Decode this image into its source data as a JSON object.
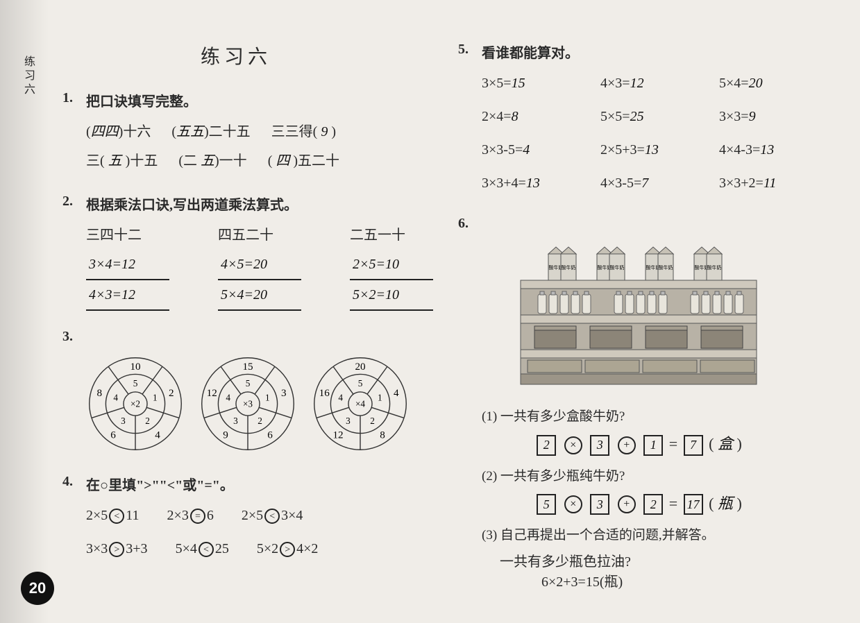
{
  "margin_label": "练习六",
  "title": "练习六",
  "page_number": "20",
  "q1": {
    "num": "1.",
    "prompt": "把口诀填写完整。",
    "row1": [
      {
        "pre": "(",
        "fill": "四四",
        "post": ")十六"
      },
      {
        "pre": "(",
        "fill": "五五",
        "post": ")二十五"
      },
      {
        "pre": "三三得( ",
        "fill": "9",
        "post": " )"
      }
    ],
    "row2": [
      {
        "pre": "三( ",
        "fill": "五",
        "post": " )十五"
      },
      {
        "pre": "(二 ",
        "fill": "五",
        "post": ")一十"
      },
      {
        "pre": "( ",
        "fill": "四",
        "post": " )五二十"
      }
    ]
  },
  "q2": {
    "num": "2.",
    "prompt": "根据乘法口诀,写出两道乘法算式。",
    "cols": [
      {
        "head": "三四十二",
        "a": "3×4=12",
        "b": "4×3=12"
      },
      {
        "head": "四五二十",
        "a": "4×5=20",
        "b": "5×4=20"
      },
      {
        "head": "二五一十",
        "a": "2×5=10",
        "b": "5×2=10"
      }
    ]
  },
  "q3": {
    "num": "3.",
    "wheels": [
      {
        "center": "×2",
        "inner": [
          "5",
          "1",
          "2",
          "3",
          "4"
        ],
        "outer": [
          "10",
          "2",
          "4",
          "6",
          "8"
        ]
      },
      {
        "center": "×3",
        "inner": [
          "5",
          "1",
          "2",
          "3",
          "4"
        ],
        "outer": [
          "15",
          "3",
          "6",
          "9",
          "12"
        ]
      },
      {
        "center": "×4",
        "inner": [
          "5",
          "1",
          "2",
          "3",
          "4"
        ],
        "outer": [
          "20",
          "4",
          "8",
          "12",
          "16"
        ]
      }
    ],
    "colors": {
      "line": "#333",
      "hand": "#111"
    }
  },
  "q4": {
    "num": "4.",
    "prompt": "在○里填\">\"\"<\"或\"=\"。",
    "rows": [
      [
        {
          "l": "2×5",
          "s": "<",
          "r": "11"
        },
        {
          "l": "2×3",
          "s": "=",
          "r": "6"
        },
        {
          "l": "2×5",
          "s": "<",
          "r": "3×4"
        }
      ],
      [
        {
          "l": "3×3",
          "s": ">",
          "r": "3+3"
        },
        {
          "l": "5×4",
          "s": "<",
          "r": "25"
        },
        {
          "l": "5×2",
          "s": ">",
          "r": "4×2"
        }
      ]
    ]
  },
  "q5": {
    "num": "5.",
    "prompt": "看谁都能算对。",
    "items": [
      {
        "expr": "3×5=",
        "ans": "15"
      },
      {
        "expr": "4×3=",
        "ans": "12"
      },
      {
        "expr": "5×4=",
        "ans": "20"
      },
      {
        "expr": "2×4=",
        "ans": "8"
      },
      {
        "expr": "5×5=",
        "ans": "25"
      },
      {
        "expr": "3×3=",
        "ans": "9"
      },
      {
        "expr": "3×3-5=",
        "ans": "4"
      },
      {
        "expr": "2×5+3=",
        "ans": "13"
      },
      {
        "expr": "4×4-3=",
        "ans": "13"
      },
      {
        "expr": "3×3+4=",
        "ans": "13"
      },
      {
        "expr": "4×3-5=",
        "ans": "7"
      },
      {
        "expr": "3×3+2=",
        "ans": "11"
      }
    ]
  },
  "q6": {
    "num": "6.",
    "shelf": {
      "top_cartons_label": "酸牛奶",
      "colors": {
        "shelf": "#b8b2a6",
        "carton": "#d8d5cc",
        "bottle": "#e8e5dc",
        "box": "#8c8578",
        "box_front": "#a59e90"
      }
    },
    "sub1": {
      "label": "(1) 一共有多少盒酸牛奶?",
      "boxes": [
        "2",
        "3",
        "1",
        "7"
      ],
      "ops": [
        "×",
        "+"
      ],
      "unit": "盒"
    },
    "sub2": {
      "label": "(2) 一共有多少瓶纯牛奶?",
      "boxes": [
        "5",
        "3",
        "2",
        "17"
      ],
      "ops": [
        "×",
        "+"
      ],
      "unit": "瓶"
    },
    "sub3": {
      "label": "(3) 自己再提出一个合适的问题,并解答。",
      "hand_q": "一共有多少瓶色拉油?",
      "hand_a": "6×2+3=15(瓶)"
    }
  }
}
